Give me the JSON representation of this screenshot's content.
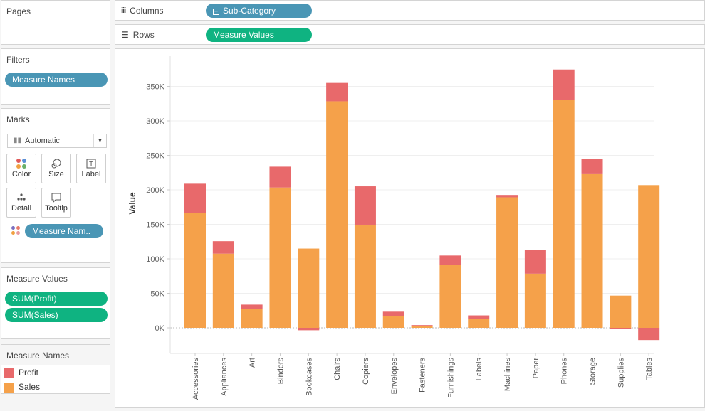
{
  "pages": {
    "title": "Pages"
  },
  "filters": {
    "title": "Filters",
    "pill": "Measure Names"
  },
  "marks": {
    "title": "Marks",
    "type_label": "Automatic",
    "buttons": {
      "color": "Color",
      "size": "Size",
      "label": "Label",
      "detail": "Detail",
      "tooltip": "Tooltip"
    },
    "color_pill": "Measure Nam.."
  },
  "measure_values": {
    "title": "Measure Values",
    "pills": [
      "SUM(Profit)",
      "SUM(Sales)"
    ]
  },
  "legend": {
    "title": "Measure Names",
    "items": [
      {
        "label": "Profit",
        "color": "#e8696b"
      },
      {
        "label": "Sales",
        "color": "#f5a14a"
      }
    ]
  },
  "shelves": {
    "columns_label": "Columns",
    "columns_pill": "Sub-Category",
    "rows_label": "Rows",
    "rows_pill": "Measure Values"
  },
  "chart_data": {
    "type": "bar",
    "stacked": true,
    "ylabel": "Value",
    "ylim": [
      -35000,
      385000
    ],
    "yticks": [
      0,
      50000,
      100000,
      150000,
      200000,
      250000,
      300000,
      350000
    ],
    "ytick_labels": [
      "0K",
      "50K",
      "100K",
      "150K",
      "200K",
      "250K",
      "300K",
      "350K"
    ],
    "categories": [
      "Accessories",
      "Appliances",
      "Art",
      "Binders",
      "Bookcases",
      "Chairs",
      "Copiers",
      "Envelopes",
      "Fasteners",
      "Furnishings",
      "Labels",
      "Machines",
      "Paper",
      "Phones",
      "Storage",
      "Supplies",
      "Tables"
    ],
    "series": [
      {
        "name": "Sales",
        "color": "#f5a14a",
        "values": [
          167000,
          107500,
          27100,
          203400,
          114900,
          328400,
          149500,
          16500,
          3000,
          91700,
          12500,
          189200,
          78500,
          330000,
          223800,
          46700,
          206900
        ]
      },
      {
        "name": "Profit",
        "color": "#e8696b",
        "values": [
          41900,
          18100,
          6500,
          30200,
          -3500,
          26600,
          55600,
          6900,
          950,
          13100,
          5500,
          3400,
          34100,
          44500,
          21300,
          -1200,
          -17700
        ]
      }
    ],
    "grid": true
  }
}
